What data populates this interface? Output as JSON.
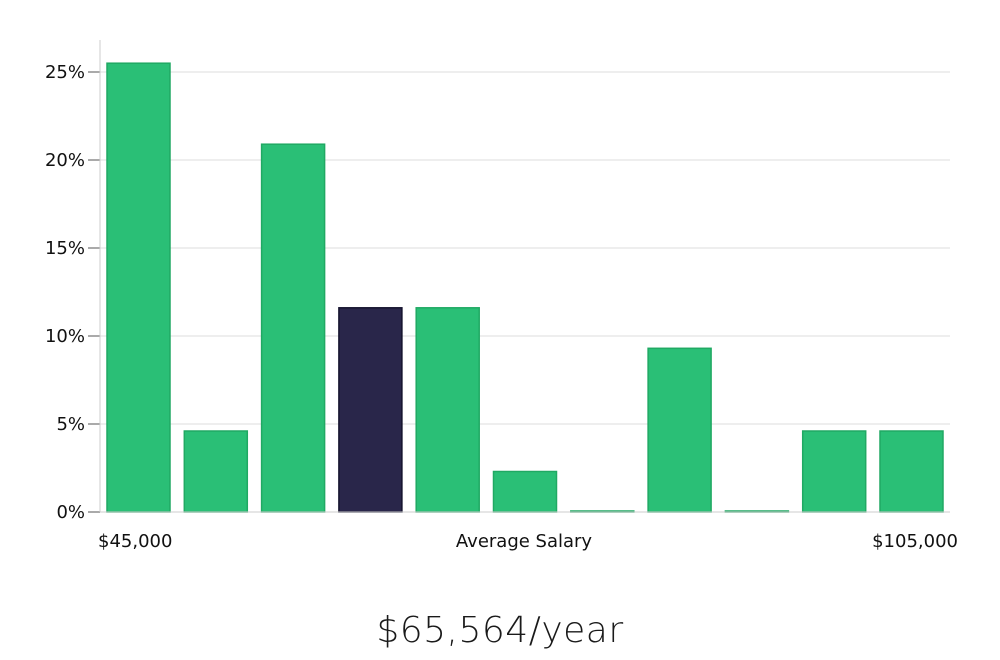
{
  "chart_data": {
    "type": "bar",
    "title": "",
    "xlabel": "Average Salary",
    "ylabel": "",
    "x_start_label": "$45,000",
    "x_end_label": "$105,000",
    "y_ticks": [
      "0%",
      "5%",
      "10%",
      "15%",
      "20%",
      "25%"
    ],
    "ylim": [
      0,
      27
    ],
    "grid": "horizontal",
    "values": [
      25.5,
      4.6,
      20.9,
      11.6,
      11.6,
      2.3,
      0.05,
      9.3,
      0.05,
      4.6,
      4.6
    ],
    "highlight_index": 3,
    "colors": {
      "bar": "#2abf76",
      "bar_edge": "#20a963",
      "highlight": "#29264a",
      "highlight_edge": "#15132e",
      "grid": "#dcdcdc",
      "axis": "#cccccc"
    }
  },
  "summary": {
    "average_salary": "$65,564/year"
  }
}
